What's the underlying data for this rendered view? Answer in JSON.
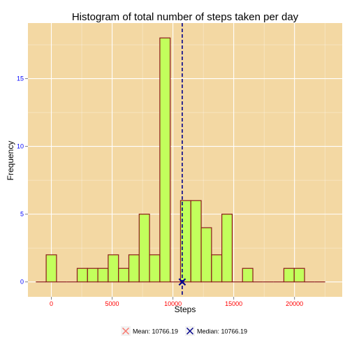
{
  "chart_data": {
    "type": "bar",
    "title": "Histogram of total number of steps taken per day",
    "xlabel": "Steps",
    "ylabel": "Frequency",
    "xlim": [
      -1925,
      23925
    ],
    "ylim": [
      -1.1,
      19.1
    ],
    "x_ticks": [
      0,
      5000,
      10000,
      15000,
      20000
    ],
    "x_tick_labels": [
      "0",
      "5000",
      "10000",
      "15000",
      "20000"
    ],
    "y_ticks": [
      0,
      5,
      10,
      15
    ],
    "y_tick_labels": [
      "0",
      "5",
      "10",
      "15"
    ],
    "grid": true,
    "bin_width": 850,
    "bin_centers": [
      -850,
      0,
      850,
      1700,
      2550,
      3400,
      4250,
      5100,
      5950,
      6800,
      7650,
      8500,
      9350,
      10200,
      11050,
      11900,
      12750,
      13600,
      14450,
      15300,
      16150,
      17000,
      17850,
      18700,
      19550,
      20400,
      21250,
      22100
    ],
    "counts": [
      0,
      2,
      0,
      0,
      1,
      1,
      1,
      2,
      1,
      2,
      5,
      2,
      18,
      0,
      6,
      6,
      4,
      2,
      5,
      0,
      1,
      0,
      0,
      0,
      1,
      1,
      0,
      0
    ],
    "mean": 10766.19,
    "median": 10766.19,
    "legend": {
      "placement": "bottom",
      "items": [
        {
          "label": "Mean: 10766.19",
          "color": "#F8766D",
          "shape": "x"
        },
        {
          "label": "Median: 10766.19",
          "color": "#00008B",
          "shape": "x"
        }
      ]
    },
    "colors": {
      "panel_bg": "#F3D8A3",
      "grid": "#FFFFFF",
      "bar_fill": "#C2FF5C",
      "bar_stroke": "#8B1A1A",
      "median_line": "#00008B",
      "x_tick_color": "#FF0000",
      "y_tick_color": "#0000FF"
    }
  }
}
